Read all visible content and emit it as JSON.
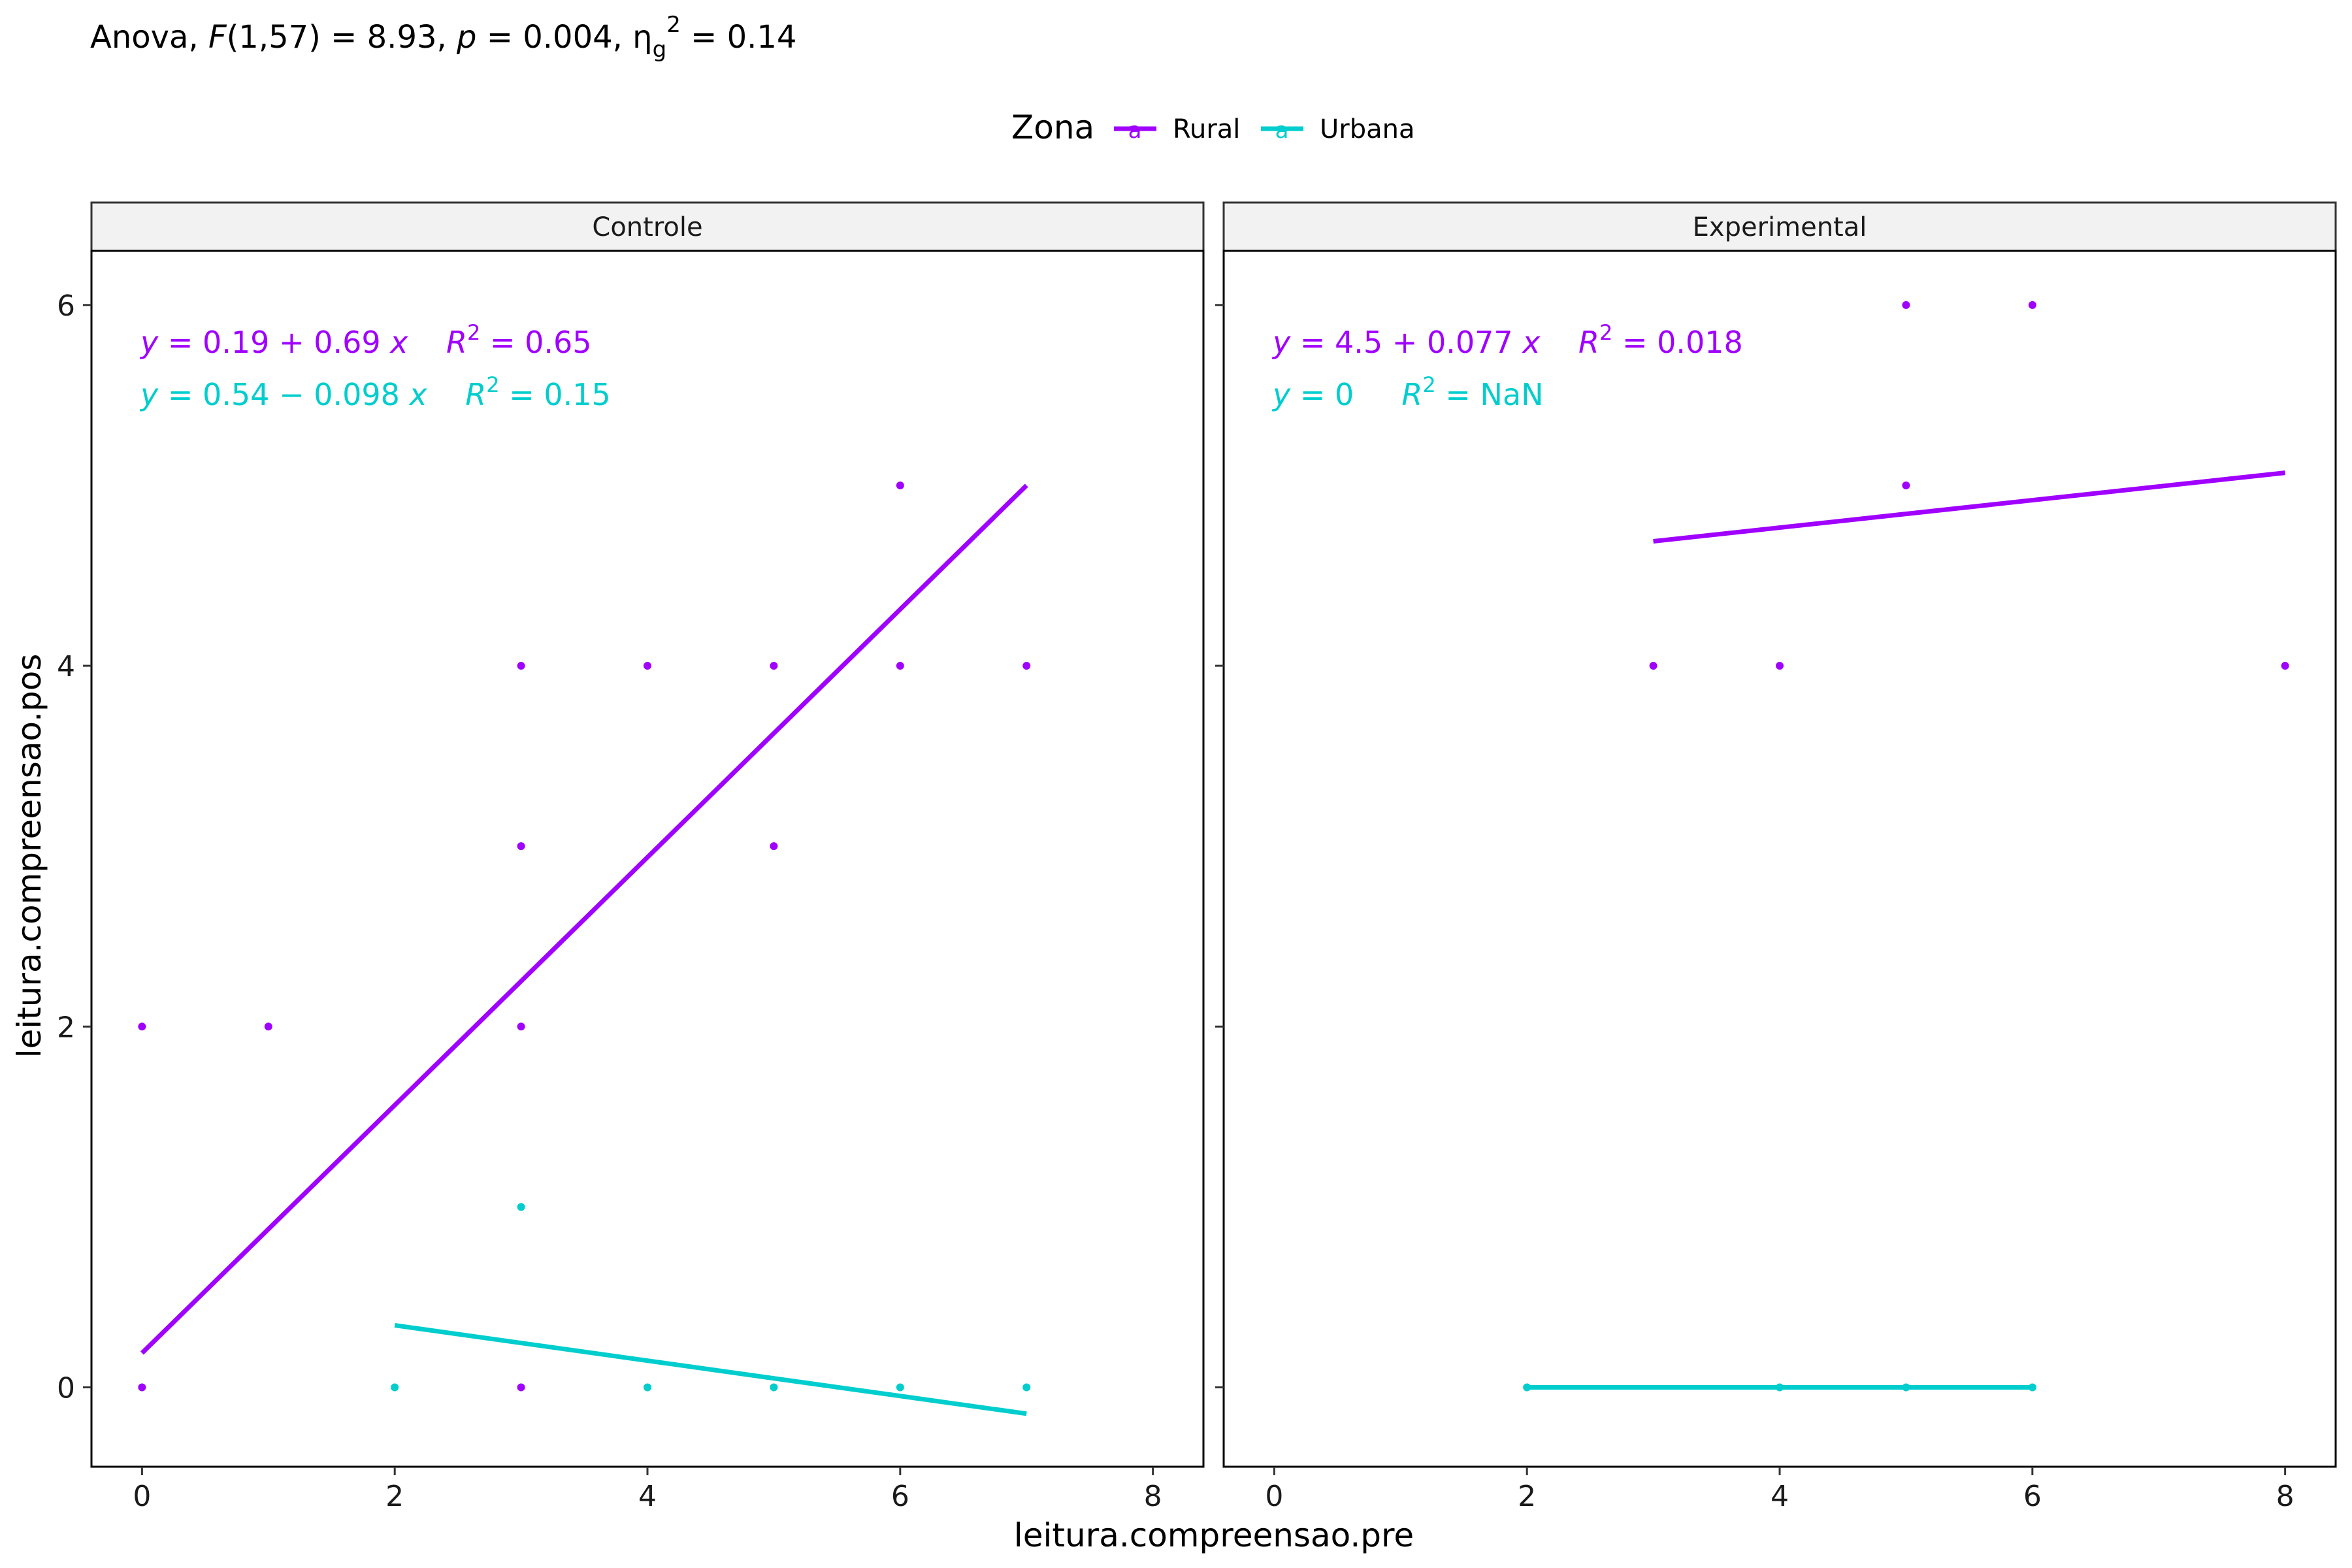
{
  "chart_data": {
    "type": "scatter",
    "subtitle": {
      "prefix": "Anova, ",
      "f_sym": "F",
      "f_df": "(1,57) = 8.93, ",
      "p_sym": "p",
      "p_val": " = 0.004, ",
      "eta": "η",
      "eta_sub": "g",
      "eta_sup": "2",
      "eta_val": " = 0.14"
    },
    "legend": {
      "title": "Zona",
      "position": "top",
      "key_glyph": "a"
    },
    "xlabel": "leitura.compreensao.pre",
    "ylabel": "leitura.compreensao.pos",
    "xlim": [
      -0.4,
      8.4
    ],
    "ylim": [
      -0.44,
      6.3
    ],
    "x_ticks": [
      "0",
      "2",
      "4",
      "6",
      "8"
    ],
    "y_ticks": [
      "0",
      "2",
      "4",
      "6"
    ],
    "grid": false,
    "colors": {
      "Rural": "#9F00FF",
      "Urbana": "#00CDCD"
    },
    "series": [
      {
        "name": "Rural"
      },
      {
        "name": "Urbana"
      }
    ],
    "panels": [
      {
        "label": "Controle",
        "points": {
          "Rural": [
            [
              0,
              2
            ],
            [
              0,
              0
            ],
            [
              1,
              2
            ],
            [
              3,
              4
            ],
            [
              3,
              3
            ],
            [
              3,
              2
            ],
            [
              3,
              0
            ],
            [
              4,
              4
            ],
            [
              5,
              4
            ],
            [
              5,
              3
            ],
            [
              6,
              5
            ],
            [
              6,
              4
            ],
            [
              7,
              4
            ]
          ],
          "Urbana": [
            [
              2,
              0
            ],
            [
              3,
              1
            ],
            [
              4,
              0
            ],
            [
              5,
              0
            ],
            [
              6,
              0
            ],
            [
              7,
              0
            ]
          ]
        },
        "fits": {
          "Rural": {
            "x": [
              0,
              7
            ],
            "y": [
              0.19,
              5.0
            ]
          },
          "Urbana": {
            "x": [
              2,
              7
            ],
            "y": [
              0.344,
              -0.146
            ]
          }
        },
        "equations": [
          {
            "series": "Rural",
            "y": "y",
            "rhs": " = 0.19 + 0.69 ",
            "x": "x",
            "r": "R",
            "r_sup": "2",
            "r_val": " = 0.65"
          },
          {
            "series": "Urbana",
            "y": "y",
            "rhs": " = 0.54 − 0.098 ",
            "x": "x",
            "r": "R",
            "r_sup": "2",
            "r_val": " = 0.15"
          }
        ]
      },
      {
        "label": "Experimental",
        "points": {
          "Rural": [
            [
              3,
              4
            ],
            [
              4,
              4
            ],
            [
              5,
              6
            ],
            [
              5,
              5
            ],
            [
              6,
              6
            ],
            [
              8,
              4
            ]
          ],
          "Urbana": [
            [
              2,
              0
            ],
            [
              4,
              0
            ],
            [
              5,
              0
            ],
            [
              6,
              0
            ]
          ]
        },
        "fits": {
          "Rural": {
            "x": [
              3,
              8
            ],
            "y": [
              4.69,
              5.07
            ]
          },
          "Urbana": {
            "x": [
              2,
              6
            ],
            "y": [
              0,
              0
            ]
          }
        },
        "equations": [
          {
            "series": "Rural",
            "y": "y",
            "rhs": " = 4.5 + 0.077 ",
            "x": "x",
            "r": "R",
            "r_sup": "2",
            "r_val": " = 0.018"
          },
          {
            "series": "Urbana",
            "y": "y",
            "rhs": " = 0 ",
            "x": "",
            "r": "R",
            "r_sup": "2",
            "r_val": " = NaN"
          }
        ]
      }
    ]
  }
}
